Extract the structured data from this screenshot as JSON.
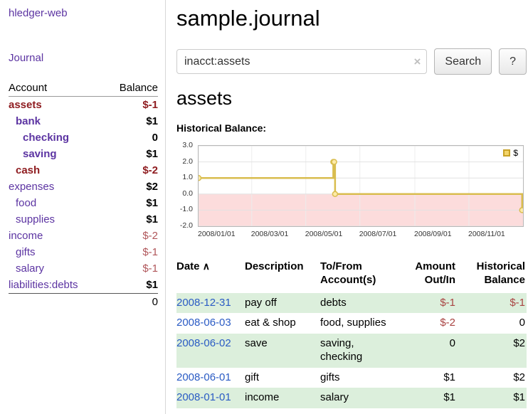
{
  "colors": {
    "accent_purple": "#5c34a2",
    "negative_dark": "#8f1d21",
    "negative_light": "#b0565a",
    "table_negative": "#a94442",
    "date_link_blue": "#2a5bc4",
    "row_shade_green": "#dcefdc",
    "chart_line": "#d9bd4f",
    "chart_negative_fill": "#fcdcdc"
  },
  "app": {
    "title": "hledger-web"
  },
  "sidebar": {
    "journal_link": "Journal",
    "accounts": {
      "headers": {
        "account": "Account",
        "balance": "Balance"
      },
      "rows": [
        {
          "account": "assets",
          "balance": "$-1",
          "indent": 0,
          "bold": true,
          "account_negative": true,
          "balance_negative": "dark",
          "balance_bold": true
        },
        {
          "account": "bank",
          "balance": "$1",
          "indent": 1,
          "bold": true,
          "balance_bold": true
        },
        {
          "account": "checking",
          "balance": "0",
          "indent": 2,
          "bold": true,
          "balance_bold": true
        },
        {
          "account": "saving",
          "balance": "$1",
          "indent": 2,
          "bold": true,
          "balance_bold": true
        },
        {
          "account": "cash",
          "balance": "$-2",
          "indent": 1,
          "bold": true,
          "account_negative": true,
          "balance_negative": "dark",
          "balance_bold": true
        },
        {
          "account": "expenses",
          "balance": "$2",
          "indent": 0,
          "balance_bold": true
        },
        {
          "account": "food",
          "balance": "$1",
          "indent": 1,
          "balance_bold": true
        },
        {
          "account": "supplies",
          "balance": "$1",
          "indent": 1,
          "balance_bold": true
        },
        {
          "account": "income",
          "balance": "$-2",
          "indent": 0,
          "balance_negative": "light"
        },
        {
          "account": "gifts",
          "balance": "$-1",
          "indent": 1,
          "balance_negative": "light"
        },
        {
          "account": "salary",
          "balance": "$-1",
          "indent": 1,
          "balance_negative": "light"
        },
        {
          "account": "liabilities:debts",
          "balance": "$1",
          "indent": 0,
          "balance_bold": true
        }
      ],
      "total": "0"
    }
  },
  "main": {
    "title": "sample.journal",
    "search": {
      "value": "inacct:assets",
      "clear_icon": "×",
      "search_button": "Search",
      "help_button": "?"
    },
    "account_heading": "assets"
  },
  "chart_data": {
    "type": "line",
    "title": "Historical Balance:",
    "step": "after",
    "x_range": [
      "2008/01/01",
      "2009/01/01"
    ],
    "y_range": [
      -2,
      3
    ],
    "y_ticks": [
      "3.0",
      "2.0",
      "1.0",
      "0.0",
      "-1.0",
      "-2.0"
    ],
    "x_ticks": [
      "2008/01/01",
      "2008/03/01",
      "2008/05/01",
      "2008/07/01",
      "2008/09/01",
      "2008/11/01"
    ],
    "legend": {
      "label": "$",
      "position": "top-right"
    },
    "series": [
      {
        "name": "$",
        "points": [
          {
            "date": "2008/01/01",
            "value": 1
          },
          {
            "date": "2008/06/01",
            "value": 2
          },
          {
            "date": "2008/06/02",
            "value": 2
          },
          {
            "date": "2008/06/03",
            "value": 0
          },
          {
            "date": "2008/12/31",
            "value": -1
          }
        ]
      }
    ],
    "line_color": "#d9bd4f",
    "negative_region_fill": "#fcdcdc",
    "grid": true
  },
  "register": {
    "headers": {
      "date": "Date",
      "sort_icon": "∧",
      "description": "Description",
      "accounts_line1": "To/From",
      "accounts_line2": "Account(s)",
      "amount_line1": "Amount",
      "amount_line2": "Out/In",
      "balance_line1": "Historical",
      "balance_line2": "Balance"
    },
    "rows": [
      {
        "date": "2008-12-31",
        "description": "pay off",
        "accounts": "debts",
        "amount": "$-1",
        "amount_negative": true,
        "balance": "$-1",
        "balance_negative": true,
        "shaded": true
      },
      {
        "date": "2008-06-03",
        "description": "eat & shop",
        "accounts": "food, supplies",
        "amount": "$-2",
        "amount_negative": true,
        "balance": "0",
        "balance_negative": false,
        "shaded": false
      },
      {
        "date": "2008-06-02",
        "description": "save",
        "accounts": "saving, checking",
        "amount": "0",
        "amount_negative": false,
        "balance": "$2",
        "balance_negative": false,
        "shaded": true
      },
      {
        "date": "2008-06-01",
        "description": "gift",
        "accounts": "gifts",
        "amount": "$1",
        "amount_negative": false,
        "balance": "$2",
        "balance_negative": false,
        "shaded": false
      },
      {
        "date": "2008-01-01",
        "description": "income",
        "accounts": "salary",
        "amount": "$1",
        "amount_negative": false,
        "balance": "$1",
        "balance_negative": false,
        "shaded": true
      }
    ]
  }
}
